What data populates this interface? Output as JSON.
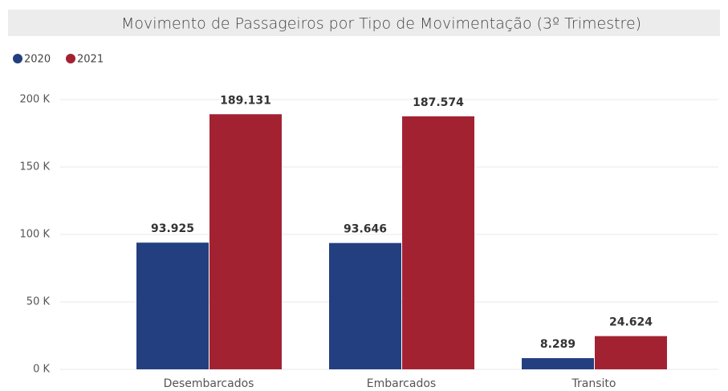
{
  "chart_data": {
    "type": "bar",
    "title": "Movimento de Passageiros por Tipo de Movimentação (3º Trimestre)",
    "categories": [
      "Desembarcados",
      "Embarcados",
      "Transito"
    ],
    "series": [
      {
        "name": "2020",
        "color": "#233f80",
        "values": [
          93925,
          93646,
          8289
        ],
        "value_labels": [
          "93.925",
          "93.646",
          "8.289"
        ]
      },
      {
        "name": "2021",
        "color": "#a32232",
        "values": [
          189131,
          187574,
          24624
        ],
        "value_labels": [
          "189.131",
          "187.574",
          "24.624"
        ]
      }
    ],
    "ylim": [
      0,
      200000
    ],
    "yticks": [
      {
        "value": 0,
        "label": "0 K"
      },
      {
        "value": 50000,
        "label": "50 K"
      },
      {
        "value": 100000,
        "label": "100 K"
      },
      {
        "value": 150000,
        "label": "150 K"
      },
      {
        "value": 200000,
        "label": "200 K"
      }
    ],
    "grid": true,
    "legend": "top-left"
  }
}
